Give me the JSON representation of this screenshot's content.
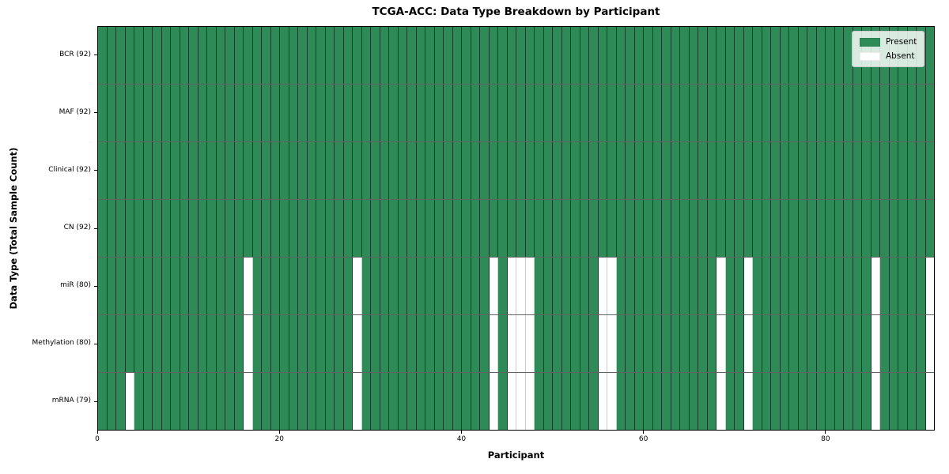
{
  "chart_data": {
    "type": "heatmap",
    "title": "TCGA-ACC: Data Type Breakdown by Participant",
    "xlabel": "Participant",
    "ylabel": "Data Type (Total Sample Count)",
    "x_ticks": [
      0,
      20,
      40,
      60,
      80
    ],
    "xlim": [
      0,
      92
    ],
    "n_participants": 92,
    "grid": "cell-edges",
    "colors": {
      "present": "#2e8b57",
      "absent": "#ffffff",
      "present_edge": "#143926",
      "absent_edge": "#cccccc",
      "spine": "#000000"
    },
    "legend": {
      "position": "upper right",
      "entries": [
        {
          "label": "Present",
          "color": "#2e8b57"
        },
        {
          "label": "Absent",
          "color": "#ffffff"
        }
      ]
    },
    "rows": [
      {
        "label": "BCR (92)",
        "data_type": "BCR",
        "present_count": 92,
        "absent_participants": []
      },
      {
        "label": "MAF (92)",
        "data_type": "MAF",
        "present_count": 92,
        "absent_participants": []
      },
      {
        "label": "Clinical (92)",
        "data_type": "Clinical",
        "present_count": 92,
        "absent_participants": []
      },
      {
        "label": "CN (92)",
        "data_type": "CN",
        "present_count": 92,
        "absent_participants": []
      },
      {
        "label": "miR (80)",
        "data_type": "miR",
        "present_count": 80,
        "absent_participants": [
          16,
          28,
          43,
          45,
          46,
          47,
          55,
          56,
          68,
          71,
          85,
          91
        ]
      },
      {
        "label": "Methylation (80)",
        "data_type": "Methylation",
        "present_count": 80,
        "absent_participants": [
          16,
          28,
          43,
          45,
          46,
          47,
          55,
          56,
          68,
          71,
          85,
          91
        ]
      },
      {
        "label": "mRNA (79)",
        "data_type": "mRNA",
        "present_count": 79,
        "absent_participants": [
          3,
          16,
          28,
          43,
          45,
          46,
          47,
          55,
          56,
          68,
          71,
          85,
          91
        ]
      }
    ]
  }
}
